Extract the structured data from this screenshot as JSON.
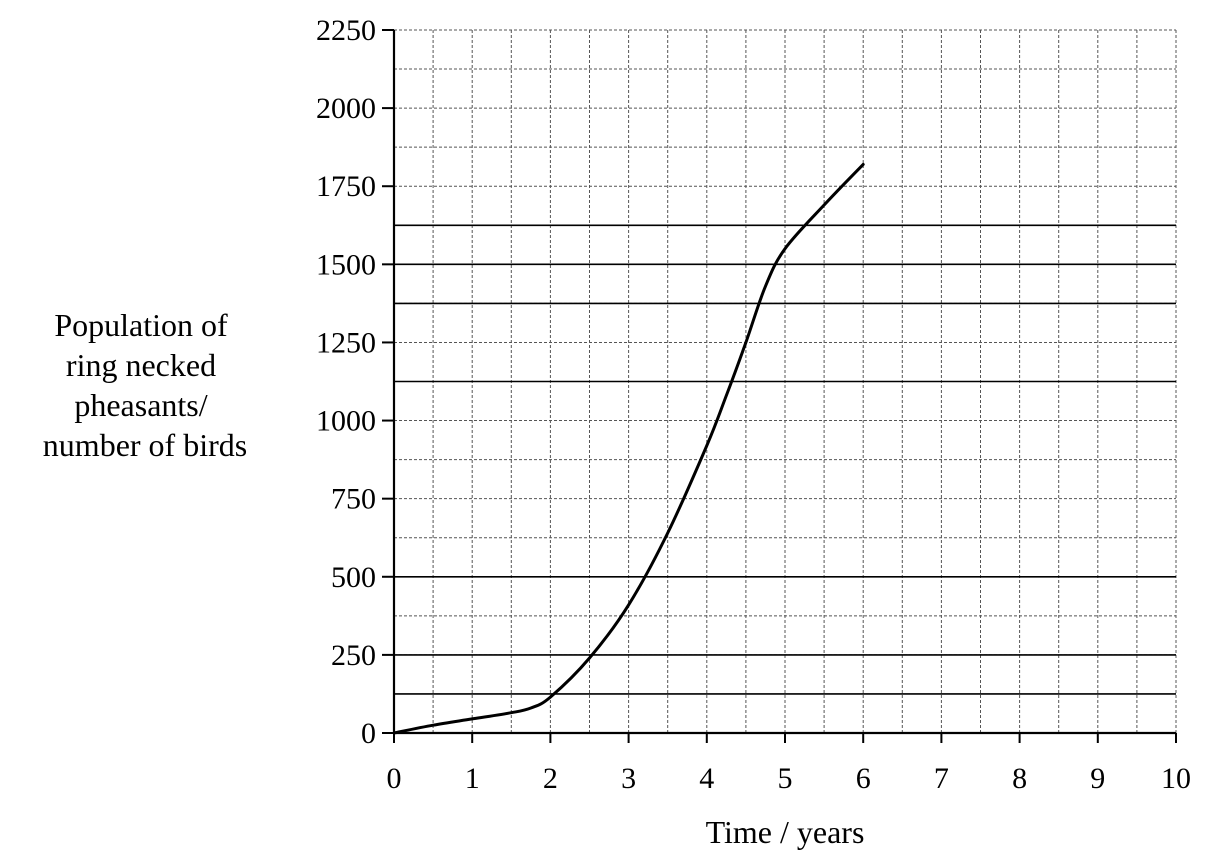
{
  "chart_data": {
    "type": "line",
    "xlabel": "Time / years",
    "ylabel_lines": [
      "Population of",
      "ring necked",
      "pheasants/",
      "number of birds"
    ],
    "xlim": [
      0,
      10
    ],
    "ylim": [
      0,
      2250
    ],
    "x_ticks": [
      "0",
      "1",
      "2",
      "3",
      "4",
      "5",
      "6",
      "7",
      "8",
      "9",
      "10"
    ],
    "y_ticks": [
      "0",
      "250",
      "500",
      "750",
      "1000",
      "1250",
      "1500",
      "1750",
      "2000",
      "2250"
    ],
    "grid": true,
    "series": [
      {
        "x": [
          0,
          0.5,
          1,
          1.5,
          1.75,
          2,
          2.5,
          3,
          3.5,
          4,
          4.25,
          4.5,
          4.75,
          5,
          5.5,
          6
        ],
        "y": [
          0,
          25,
          45,
          65,
          80,
          115,
          240,
          410,
          640,
          920,
          1080,
          1250,
          1430,
          1550,
          1690,
          1820
        ]
      }
    ]
  }
}
